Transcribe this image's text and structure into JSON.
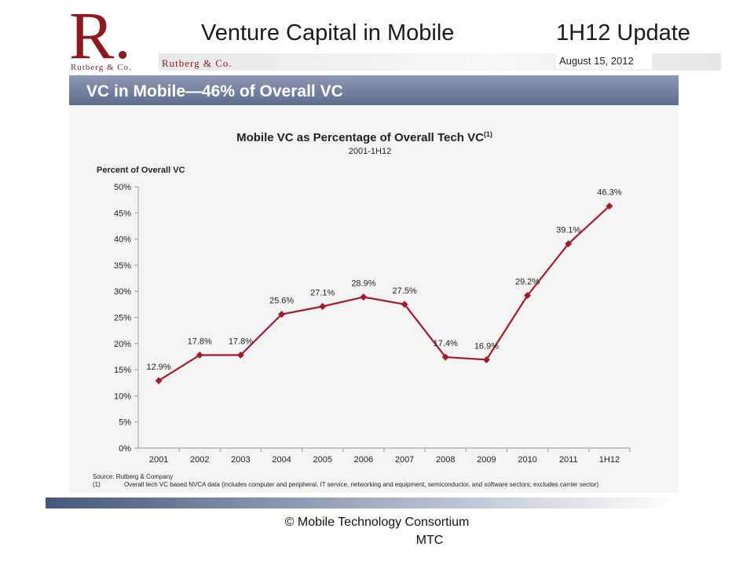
{
  "slide": {
    "title_left": "Venture Capital in Mobile",
    "title_right": "1H12 Update",
    "date": "August 15, 2012",
    "logo_letter": "R.",
    "logo_name": "Rutberg & Co.",
    "header_brand": "Rutberg & Co.",
    "banner": "VC in Mobile—46% of Overall VC",
    "copyright": "©  Mobile Technology Consortium",
    "footer_line2": "MTC"
  },
  "colors": {
    "line": "#a01c2c",
    "logo": "#8b1a1e",
    "banner": "#6b7695"
  },
  "chart_data": {
    "type": "line",
    "title": "Mobile VC as Percentage of Overall Tech VC",
    "title_superscript": "(1)",
    "subtitle": "2001-1H12",
    "ylabel": "Percent of Overall VC",
    "xlabel": "",
    "ylim": [
      0,
      50
    ],
    "yticks": [
      0,
      5,
      10,
      15,
      20,
      25,
      30,
      35,
      40,
      45,
      50
    ],
    "ytick_labels": [
      "0%",
      "5%",
      "10%",
      "15%",
      "20%",
      "25%",
      "30%",
      "35%",
      "40%",
      "45%",
      "50%"
    ],
    "categories": [
      "2001",
      "2002",
      "2003",
      "2004",
      "2005",
      "2006",
      "2007",
      "2008",
      "2009",
      "2010",
      "2011",
      "1H12"
    ],
    "values": [
      12.9,
      17.8,
      17.8,
      25.6,
      27.1,
      28.9,
      27.5,
      17.4,
      16.9,
      29.2,
      39.1,
      46.3
    ],
    "data_labels": [
      "12.9%",
      "17.8%",
      "17.8%",
      "25.6%",
      "27.1%",
      "28.9%",
      "27.5%",
      "17.4%",
      "16.9%",
      "29.2%",
      "39.1%",
      "46.3%"
    ],
    "grid": false,
    "legend": "none",
    "source_note": "Source:  Rutberg & Company",
    "footnote_marker": "(1)",
    "footnote": "Overall tech VC based NVCA data (includes computer and peripheral, IT service, networking and equipment, semiconductor, and software sectors; excludes carrier sector)"
  }
}
